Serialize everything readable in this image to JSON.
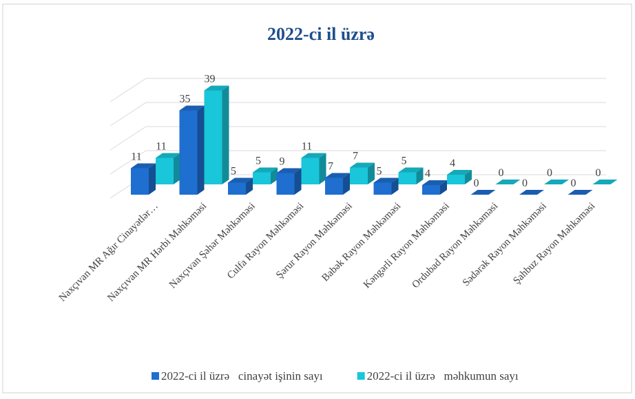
{
  "chart_data": {
    "type": "bar3d",
    "title": "2022-ci il üzrə",
    "categories": [
      "Naxçıvan MR Ağır Cinayətlər…",
      "Naxçıvan MR Hərbi Məhkəməsi",
      "Naxçıvan Şəhər Məhkəməsi",
      "Culfa Rayon Məhkəməsi",
      "Şərur Rayon Məhkəməsi",
      "Babək Rayon Məhkəməsi",
      "Kəngərli Rayon Məhkəməsi",
      "Ordubad Rayon Məhkəməsi",
      "Sədərək Rayon Məhkəməsi",
      "Şahbuz Rayon Məhkəməsi"
    ],
    "series": [
      {
        "name": "2022-ci il üzrə   cinayət işinin sayı",
        "color": "#1e6fd0",
        "values": [
          11,
          35,
          5,
          9,
          7,
          5,
          4,
          0,
          0,
          0
        ]
      },
      {
        "name": "2022-ci il üzrə   məhkumun sayı",
        "color": "#19c6da",
        "values": [
          11,
          39,
          5,
          11,
          7,
          5,
          4,
          0,
          0,
          0
        ]
      }
    ],
    "ylim": [
      0,
      40
    ],
    "yticks": [
      0,
      10,
      20,
      30,
      40
    ],
    "grid": true,
    "legend": "bottom"
  }
}
